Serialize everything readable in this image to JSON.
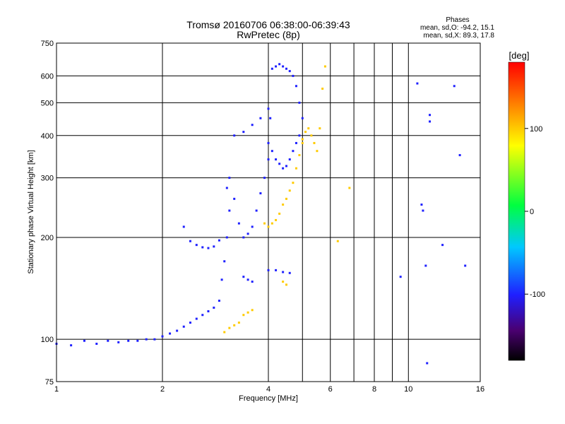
{
  "chart_data": {
    "type": "scatter",
    "title": "Tromsø 20160706 06:38:00-06:39:43",
    "subtitle": "RwPretec (8p)",
    "xlabel": "Frequency [MHz]",
    "ylabel": "Stationary phase Virtual Height [km]",
    "xscale": "log",
    "yscale": "log",
    "xlim": [
      1,
      16
    ],
    "ylim": [
      75,
      750
    ],
    "x_ticks": [
      1,
      2,
      4,
      6,
      8,
      10,
      16
    ],
    "x_tick_labels": [
      "1",
      "2",
      "4",
      "6",
      "8",
      "10",
      "16"
    ],
    "x_minor_gridlines": [
      5,
      7,
      9
    ],
    "y_ticks": [
      75,
      100,
      200,
      300,
      400,
      500,
      600,
      750
    ],
    "y_tick_labels": [
      "75",
      "100",
      "200",
      "300",
      "400",
      "500",
      "600",
      "750"
    ],
    "grid": true,
    "phase_stats": {
      "title": "Phases",
      "line_o": "mean, sd,O: -94.2, 15.1",
      "line_x": "mean, sd,X:  89.3, 17.8"
    },
    "colorbar": {
      "label": "[deg]",
      "range": [
        -180,
        180
      ],
      "ticks": [
        100,
        0,
        -100
      ],
      "tick_labels": [
        "100",
        "0",
        "-100"
      ],
      "colormap": "rainbow"
    },
    "series": [
      {
        "mode": "O",
        "phase_deg": -100,
        "segments": [
          {
            "x": [
              1.0,
              1.1,
              1.2,
              1.3,
              1.4,
              1.5,
              1.6,
              1.7,
              1.8,
              1.9,
              2.0,
              2.1,
              2.2,
              2.3,
              2.4,
              2.5,
              2.6,
              2.7,
              2.8
            ],
            "y": [
              97,
              96,
              99,
              97,
              99,
              98,
              99,
              99,
              100,
              100,
              102,
              104,
              106,
              109,
              112,
              115,
              118,
              121,
              124
            ]
          },
          {
            "x": [
              2.3,
              2.4,
              2.5,
              2.6,
              2.7,
              2.8,
              2.9
            ],
            "y": [
              215,
              195,
              190,
              187,
              186,
              188,
              196
            ]
          },
          {
            "x": [
              2.9,
              2.95,
              3.0,
              3.05,
              3.1,
              3.05,
              3.1,
              3.2,
              3.3,
              3.4,
              3.5,
              3.6,
              3.7,
              3.8,
              3.9,
              4.0
            ],
            "y": [
              130,
              150,
              170,
              200,
              240,
              280,
              300,
              260,
              220,
              200,
              205,
              215,
              240,
              270,
              300,
              340
            ]
          },
          {
            "x": [
              3.2,
              3.4,
              3.6,
              3.8,
              4.0
            ],
            "y": [
              400,
              410,
              430,
              450,
              480
            ]
          },
          {
            "x": [
              4.0,
              4.05,
              4.1,
              4.2,
              4.3,
              4.4,
              4.5,
              4.6,
              4.7,
              4.8,
              4.9,
              5.0
            ],
            "y": [
              380,
              450,
              630,
              640,
              650,
              640,
              630,
              620,
              600,
              560,
              500,
              450
            ]
          },
          {
            "x": [
              4.1,
              4.2,
              4.3,
              4.4,
              4.5,
              4.6,
              4.7,
              4.8,
              4.9
            ],
            "y": [
              360,
              340,
              330,
              320,
              325,
              340,
              360,
              380,
              400
            ]
          },
          {
            "x": [
              4.0,
              4.2,
              4.4,
              4.6
            ],
            "y": [
              160,
              160,
              158,
              157
            ]
          },
          {
            "x": [
              3.4,
              3.5,
              3.6
            ],
            "y": [
              153,
              150,
              148
            ]
          },
          {
            "x": [
              9.5,
              10.6,
              11.5,
              10.9,
              11.0,
              11.2,
              11.3,
              11.5,
              12.5,
              13.5,
              14.0,
              14.5
            ],
            "y": [
              153,
              570,
              440,
              250,
              240,
              165,
              85,
              460,
              190,
              560,
              350,
              165
            ]
          }
        ]
      },
      {
        "mode": "X",
        "phase_deg": 100,
        "segments": [
          {
            "x": [
              3.0,
              3.1,
              3.2,
              3.3
            ],
            "y": [
              105,
              108,
              110,
              112
            ]
          },
          {
            "x": [
              3.4,
              3.5,
              3.6
            ],
            "y": [
              118,
              120,
              122
            ]
          },
          {
            "x": [
              3.9,
              4.0,
              4.1,
              4.2,
              4.3,
              4.4,
              4.5,
              4.6,
              4.7,
              4.8,
              4.9,
              5.0
            ],
            "y": [
              220,
              215,
              220,
              225,
              235,
              250,
              260,
              275,
              290,
              320,
              350,
              380
            ]
          },
          {
            "x": [
              5.0,
              5.1,
              5.2,
              5.3,
              5.4,
              5.5,
              5.6,
              5.7,
              5.8
            ],
            "y": [
              390,
              410,
              420,
              400,
              380,
              360,
              420,
              550,
              640
            ]
          },
          {
            "x": [
              4.4,
              4.5
            ],
            "y": [
              148,
              145
            ]
          },
          {
            "x": [
              6.3,
              6.8
            ],
            "y": [
              195,
              280
            ]
          }
        ]
      }
    ]
  }
}
